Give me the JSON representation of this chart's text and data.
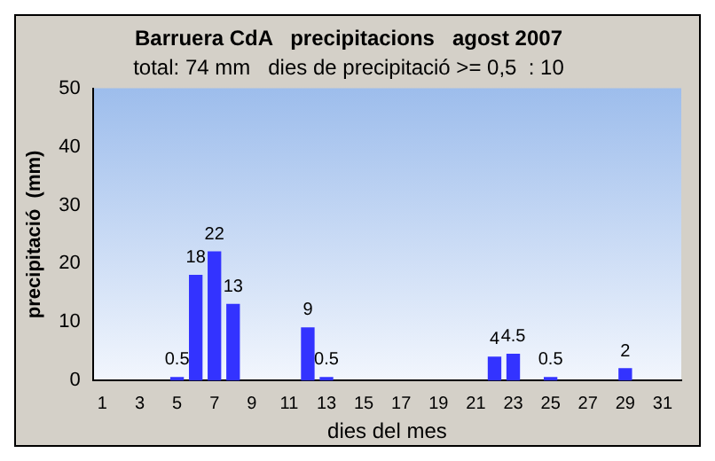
{
  "chart_data": {
    "type": "bar",
    "title": "Barruera CdA   precipitacions   agost 2007",
    "subtitle": "total: 74 mm   dies de precipitació >= 0,5  : 10",
    "xlabel": "dies del mes",
    "ylabel": "precipitació  (mm)",
    "x": [
      5,
      6,
      7,
      8,
      12,
      13,
      22,
      23,
      25,
      29
    ],
    "values": [
      0.5,
      18,
      22,
      13,
      9,
      0.5,
      4,
      4.5,
      0.5,
      2
    ],
    "color": "#3333ff",
    "xlim": [
      0.5,
      32
    ],
    "xticks": [
      1,
      3,
      5,
      7,
      9,
      11,
      13,
      15,
      17,
      19,
      21,
      23,
      25,
      27,
      29,
      31
    ],
    "ylim": [
      0,
      50
    ],
    "yticks": [
      0,
      10,
      20,
      30,
      40,
      50
    ],
    "grid": false,
    "legend": false,
    "data_labels": true
  }
}
